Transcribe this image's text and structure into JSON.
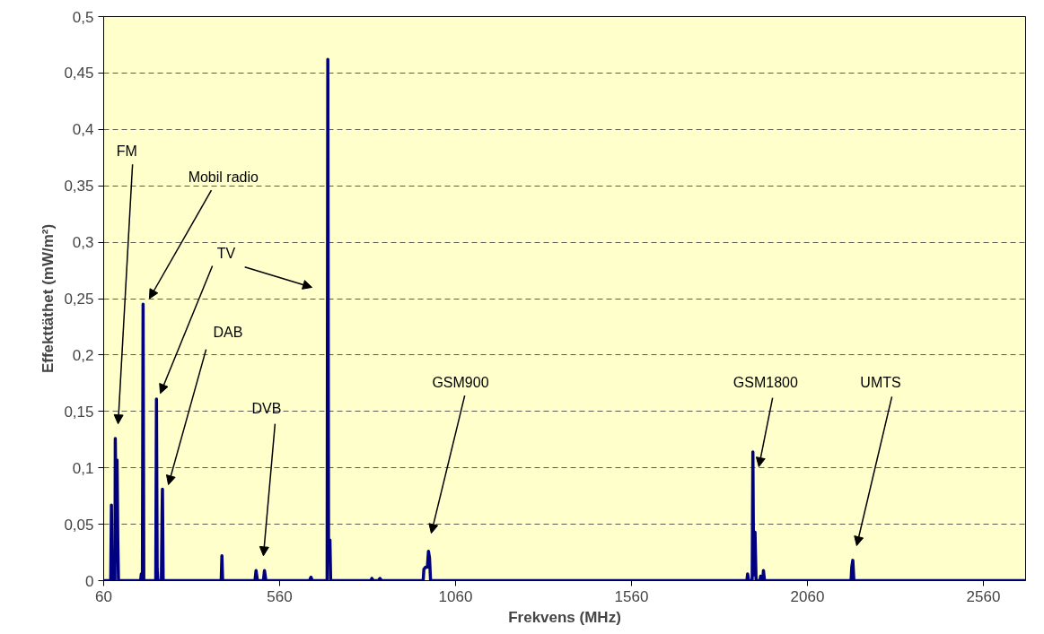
{
  "chart_data": {
    "type": "line",
    "xlabel": "Frekvens (MHz)",
    "ylabel": "Effekttäthet (mW/m²)",
    "x": [
      60,
      80,
      82,
      84,
      92,
      93,
      96,
      98,
      100,
      102,
      165,
      167,
      169,
      170,
      172,
      174,
      208,
      210,
      212,
      214,
      224,
      226,
      227,
      229,
      394,
      396,
      398,
      490,
      493,
      497,
      514,
      517,
      521,
      645,
      649,
      653,
      695,
      697,
      699,
      703,
      705,
      820,
      822,
      826,
      840,
      845,
      850,
      968,
      970,
      975,
      980,
      983,
      986,
      989,
      1888,
      1890,
      1893,
      1903,
      1905,
      1907,
      1911,
      1914,
      1925,
      1927,
      1929,
      1933,
      1935,
      1938,
      2184,
      2186,
      2189,
      2192,
      2680
    ],
    "series": [
      {
        "color": "#000080",
        "values": [
          0,
          0,
          0.067,
          0,
          0,
          0.126,
          0.04,
          0.107,
          0.038,
          0,
          0,
          0.006,
          0,
          0,
          0.245,
          0,
          0,
          0.161,
          0.01,
          0,
          0,
          0.06,
          0.081,
          0,
          0,
          0.022,
          0,
          0,
          0.009,
          0,
          0,
          0.009,
          0,
          0,
          0.003,
          0,
          0,
          0.462,
          0.036,
          0.036,
          0,
          0,
          0.002,
          0,
          0,
          0.002,
          0,
          0,
          0.01,
          0.012,
          0.012,
          0.026,
          0.02,
          0,
          0,
          0.006,
          0,
          0,
          0.114,
          0.005,
          0.043,
          0,
          0,
          0.004,
          0,
          0,
          0.009,
          0,
          0,
          0.012,
          0.018,
          0,
          0
        ]
      }
    ],
    "xlim": [
      60,
      2680
    ],
    "xticks": [
      60,
      560,
      1060,
      1560,
      2060,
      2560
    ],
    "ylim": [
      0,
      0.5
    ],
    "yticks": [
      0,
      {
        "value": 0.05,
        "label": "0,05"
      },
      {
        "value": 0.1,
        "label": "0,1"
      },
      {
        "value": 0.15,
        "label": "0,15"
      },
      {
        "value": 0.2,
        "label": "0,2"
      },
      {
        "value": 0.25,
        "label": "0,25"
      },
      {
        "value": 0.3,
        "label": "0,3"
      },
      {
        "value": 0.35,
        "label": "0,35"
      },
      {
        "value": 0.4,
        "label": "0,4"
      },
      {
        "value": 0.45,
        "label": "0,45"
      },
      {
        "value": 0.5,
        "label": "0,5"
      }
    ],
    "grid": "y",
    "marker": "none",
    "line_style": "solid",
    "annotations": [
      "FM",
      "Mobil radio",
      "TV",
      "DAB",
      "DVB",
      "GSM900",
      "GSM1800",
      "UMTS"
    ]
  }
}
